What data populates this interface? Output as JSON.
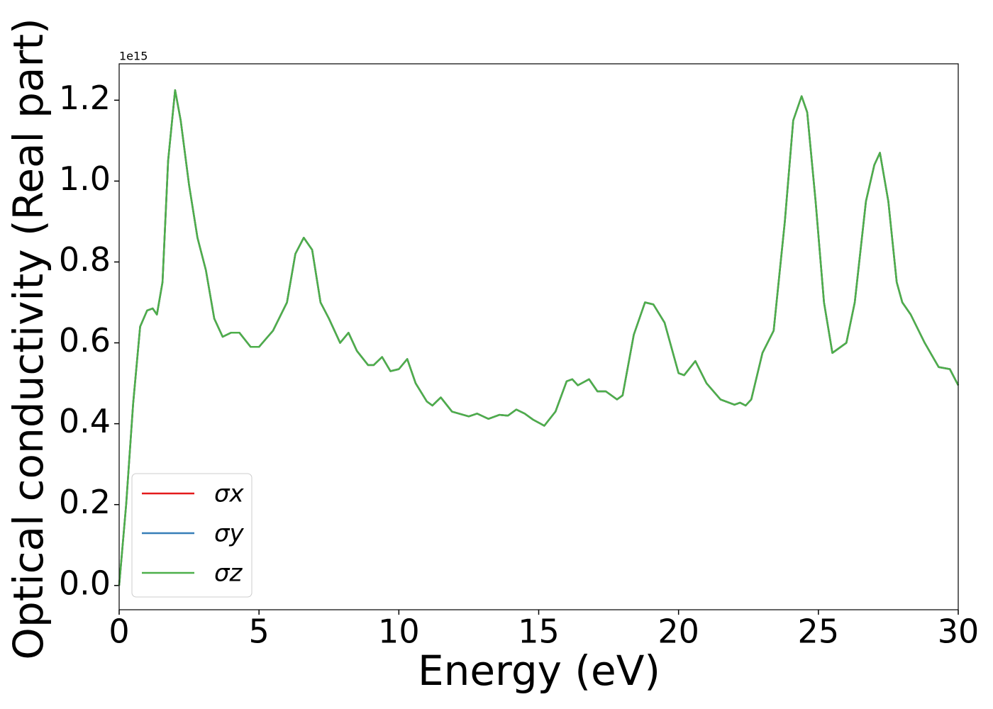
{
  "chart_data": {
    "type": "line",
    "x_label": "Energy (eV)",
    "y_label": "Optical conductivity (Real part)",
    "y_offset_label": "1e15",
    "xlim": [
      0,
      30
    ],
    "xticks": [
      0,
      5,
      10,
      15,
      20,
      25,
      30
    ],
    "ylim": [
      -0.06,
      1.29
    ],
    "yticks": [
      {
        "value": 0,
        "label": "0.0"
      },
      0.2,
      0.4,
      0.6,
      0.8,
      {
        "value": 1,
        "label": "1.0"
      },
      1.2
    ],
    "legend": "lower left",
    "grid": false,
    "x": [
      0,
      0.25,
      0.5,
      0.75,
      1.0,
      1.2,
      1.35,
      1.55,
      1.75,
      2.0,
      2.2,
      2.5,
      2.8,
      3.1,
      3.4,
      3.7,
      4.0,
      4.3,
      4.7,
      5.0,
      5.5,
      6.0,
      6.3,
      6.6,
      6.9,
      7.2,
      7.5,
      7.9,
      8.2,
      8.5,
      8.9,
      9.1,
      9.4,
      9.7,
      10.0,
      10.3,
      10.6,
      11.0,
      11.2,
      11.5,
      11.9,
      12.5,
      12.8,
      13.2,
      13.6,
      13.9,
      14.2,
      14.5,
      14.8,
      15.2,
      15.6,
      16.0,
      16.2,
      16.4,
      16.8,
      17.1,
      17.4,
      17.8,
      18.0,
      18.4,
      18.8,
      19.1,
      19.5,
      20.0,
      20.2,
      20.6,
      21.0,
      21.5,
      22.0,
      22.2,
      22.4,
      22.6,
      23.0,
      23.4,
      23.8,
      24.1,
      24.4,
      24.6,
      24.9,
      25.2,
      25.5,
      26.0,
      26.3,
      26.7,
      27.0,
      27.2,
      27.5,
      27.8,
      28.0,
      28.3,
      28.8,
      29.3,
      29.7,
      30.0
    ],
    "series": [
      {
        "name": "σx",
        "color": "#e41a1c",
        "values": [
          0.0,
          0.2,
          0.45,
          0.64,
          0.68,
          0.685,
          0.67,
          0.75,
          1.05,
          1.225,
          1.15,
          0.99,
          0.86,
          0.78,
          0.66,
          0.615,
          0.625,
          0.625,
          0.59,
          0.59,
          0.63,
          0.7,
          0.82,
          0.86,
          0.83,
          0.7,
          0.66,
          0.6,
          0.625,
          0.58,
          0.545,
          0.545,
          0.565,
          0.53,
          0.535,
          0.56,
          0.5,
          0.455,
          0.445,
          0.465,
          0.43,
          0.418,
          0.425,
          0.412,
          0.422,
          0.42,
          0.435,
          0.425,
          0.41,
          0.395,
          0.43,
          0.505,
          0.51,
          0.495,
          0.51,
          0.48,
          0.48,
          0.46,
          0.47,
          0.62,
          0.7,
          0.695,
          0.65,
          0.525,
          0.52,
          0.555,
          0.5,
          0.46,
          0.447,
          0.452,
          0.445,
          0.46,
          0.575,
          0.63,
          0.9,
          1.15,
          1.21,
          1.17,
          0.95,
          0.7,
          0.575,
          0.6,
          0.7,
          0.95,
          1.04,
          1.07,
          0.95,
          0.75,
          0.7,
          0.67,
          0.6,
          0.54,
          0.535,
          0.495
        ]
      },
      {
        "name": "σy",
        "color": "#377eb8",
        "values": [
          0.0,
          0.2,
          0.45,
          0.64,
          0.68,
          0.685,
          0.67,
          0.75,
          1.05,
          1.225,
          1.15,
          0.99,
          0.86,
          0.78,
          0.66,
          0.615,
          0.625,
          0.625,
          0.59,
          0.59,
          0.63,
          0.7,
          0.82,
          0.86,
          0.83,
          0.7,
          0.66,
          0.6,
          0.625,
          0.58,
          0.545,
          0.545,
          0.565,
          0.53,
          0.535,
          0.56,
          0.5,
          0.455,
          0.445,
          0.465,
          0.43,
          0.418,
          0.425,
          0.412,
          0.422,
          0.42,
          0.435,
          0.425,
          0.41,
          0.395,
          0.43,
          0.505,
          0.51,
          0.495,
          0.51,
          0.48,
          0.48,
          0.46,
          0.47,
          0.62,
          0.7,
          0.695,
          0.65,
          0.525,
          0.52,
          0.555,
          0.5,
          0.46,
          0.447,
          0.452,
          0.445,
          0.46,
          0.575,
          0.63,
          0.9,
          1.15,
          1.21,
          1.17,
          0.95,
          0.7,
          0.575,
          0.6,
          0.7,
          0.95,
          1.04,
          1.07,
          0.95,
          0.75,
          0.7,
          0.67,
          0.6,
          0.54,
          0.535,
          0.495
        ]
      },
      {
        "name": "σz",
        "color": "#4daf4a",
        "values": [
          0.0,
          0.2,
          0.45,
          0.64,
          0.68,
          0.685,
          0.67,
          0.75,
          1.05,
          1.225,
          1.15,
          0.99,
          0.86,
          0.78,
          0.66,
          0.615,
          0.625,
          0.625,
          0.59,
          0.59,
          0.63,
          0.7,
          0.82,
          0.86,
          0.83,
          0.7,
          0.66,
          0.6,
          0.625,
          0.58,
          0.545,
          0.545,
          0.565,
          0.53,
          0.535,
          0.56,
          0.5,
          0.455,
          0.445,
          0.465,
          0.43,
          0.418,
          0.425,
          0.412,
          0.422,
          0.42,
          0.435,
          0.425,
          0.41,
          0.395,
          0.43,
          0.505,
          0.51,
          0.495,
          0.51,
          0.48,
          0.48,
          0.46,
          0.47,
          0.62,
          0.7,
          0.695,
          0.65,
          0.525,
          0.52,
          0.555,
          0.5,
          0.46,
          0.447,
          0.452,
          0.445,
          0.46,
          0.575,
          0.63,
          0.9,
          1.15,
          1.21,
          1.17,
          0.95,
          0.7,
          0.575,
          0.6,
          0.7,
          0.95,
          1.04,
          1.07,
          0.95,
          0.75,
          0.7,
          0.67,
          0.6,
          0.54,
          0.535,
          0.495
        ]
      }
    ]
  }
}
